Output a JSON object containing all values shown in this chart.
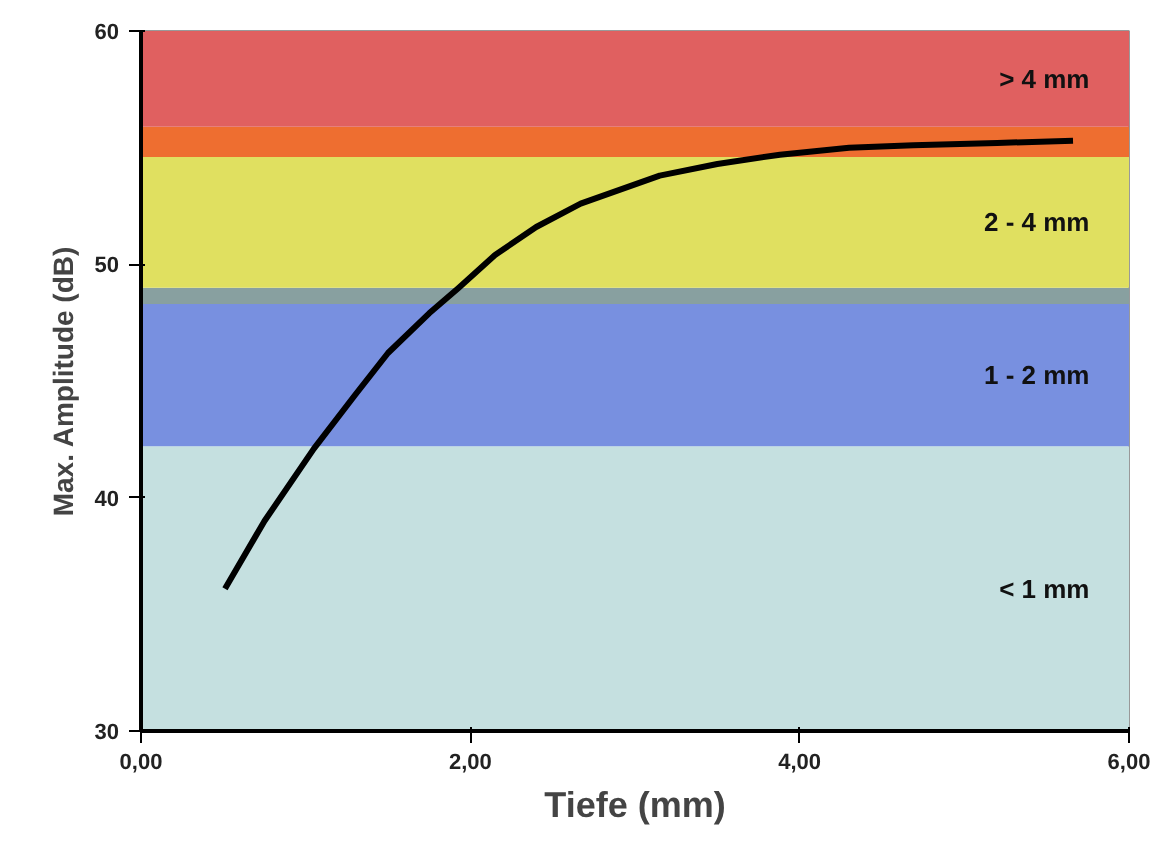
{
  "chart_data": {
    "type": "line",
    "xlabel": "Tiefe (mm)",
    "ylabel": "Max. Amplitude (dB)",
    "x": [
      0.51,
      0.75,
      1.05,
      1.3,
      1.5,
      1.75,
      1.93,
      2.15,
      2.4,
      2.67,
      3.15,
      3.5,
      3.88,
      4.3,
      4.69,
      5.2,
      5.66
    ],
    "series": [
      {
        "color": "#000000",
        "values": [
          36.1,
          39.0,
          42.1,
          44.4,
          46.2,
          47.9,
          49.0,
          50.4,
          51.6,
          52.6,
          53.8,
          54.3,
          54.7,
          55.0,
          55.1,
          55.2,
          55.3
        ]
      }
    ],
    "xlim": [
      0,
      6
    ],
    "ylim": [
      30,
      60
    ],
    "xticks": [
      {
        "value": 0,
        "label": "0,00"
      },
      {
        "value": 2,
        "label": "2,00"
      },
      {
        "value": 4,
        "label": "4,00"
      },
      {
        "value": 6,
        "label": "6,00"
      }
    ],
    "yticks": [
      30,
      40,
      50,
      60
    ],
    "bands": [
      {
        "axis": "y",
        "from": 30,
        "to": 42.2,
        "label": "< 1 mm",
        "color": "#c5e0e0"
      },
      {
        "axis": "y",
        "from": 42.2,
        "to": 48.3,
        "label": "1 - 2 mm",
        "color": "#7890e0"
      },
      {
        "axis": "y",
        "from": 48.3,
        "to": 49.0,
        "label": null,
        "color": "#88a0a0"
      },
      {
        "axis": "y",
        "from": 49.0,
        "to": 54.6,
        "label": "2 - 4 mm",
        "color": "#e0e060"
      },
      {
        "axis": "y",
        "from": 54.6,
        "to": 55.9,
        "label": null,
        "color": "#ee6e30"
      },
      {
        "axis": "y",
        "from": 55.9,
        "to": 60,
        "label": "> 4 mm",
        "color": "#e06060"
      }
    ],
    "marker": "none",
    "line_style": "solid"
  }
}
